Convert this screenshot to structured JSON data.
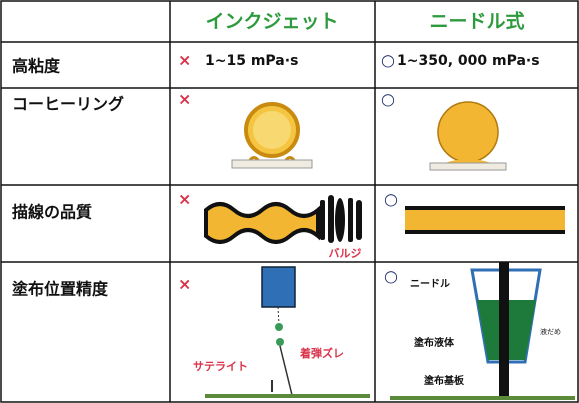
{
  "table": {
    "columns": [
      "インクジェット",
      "ニードル式"
    ],
    "rows": [
      {
        "label": "高粘度",
        "inkjet": {
          "mark": "×",
          "text": "1~15 mPa·s"
        },
        "needle": {
          "mark": "○",
          "text": "1~350, 000 mPa·s"
        }
      },
      {
        "label": "コーヒーリング",
        "inkjet": {
          "mark": "×"
        },
        "needle": {
          "mark": "○"
        }
      },
      {
        "label": "描線の品質",
        "inkjet": {
          "mark": "×",
          "annotations": [
            "バルジ"
          ]
        },
        "needle": {
          "mark": "○"
        }
      },
      {
        "label": "塗布位置精度",
        "inkjet": {
          "mark": "×",
          "annotations": [
            "サテライト",
            "着弾ズレ"
          ]
        },
        "needle": {
          "mark": "○",
          "annotations": [
            "ニードル",
            "液だめ",
            "塗布液体",
            "塗布基板"
          ]
        }
      }
    ]
  }
}
